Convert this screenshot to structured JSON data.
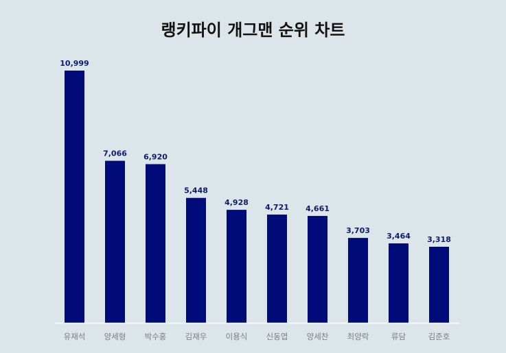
{
  "title": "랭키파이 개그맨 순위 차트",
  "colors": {
    "background": "#dbe5ea",
    "bar": "#000b7a",
    "value_label": "#0f1a6b",
    "category_label": "#7a7f85",
    "axis_line": "#ffffff"
  },
  "chart_data": {
    "type": "bar",
    "title": "랭키파이 개그맨 순위 차트",
    "xlabel": "",
    "ylabel": "",
    "grid": false,
    "legend": "none",
    "ylim": [
      0,
      10999
    ],
    "categories": [
      "유재석",
      "양세형",
      "박수홍",
      "김재우",
      "이용식",
      "신동엽",
      "양세찬",
      "최양락",
      "류담",
      "김준호"
    ],
    "values": [
      10999,
      7066,
      6920,
      5448,
      4928,
      4721,
      4661,
      3703,
      3464,
      3318
    ],
    "value_labels": [
      "10,999",
      "7,066",
      "6,920",
      "5,448",
      "4,928",
      "4,721",
      "4,661",
      "3,703",
      "3,464",
      "3,318"
    ]
  }
}
